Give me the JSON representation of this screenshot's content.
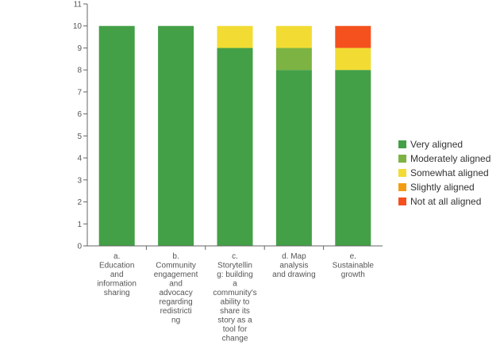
{
  "chart_data": {
    "type": "bar",
    "stacked": true,
    "title": "",
    "xlabel": "",
    "ylabel": "",
    "ylim": [
      0,
      11
    ],
    "yticks": [
      0,
      1,
      2,
      3,
      4,
      5,
      6,
      7,
      8,
      9,
      10,
      11
    ],
    "categories": [
      "a. Education and information sharing",
      "b. Community engagement and advocacy regarding redistricting",
      "c. Storytelling: building a community's ability to share its story as a tool for change",
      "d. Map analysis and drawing",
      "e. Sustainable growth"
    ],
    "category_label_lines": [
      [
        "a.",
        "Education",
        "and",
        "information",
        "sharing"
      ],
      [
        "b.",
        "Community",
        "engagement",
        "and",
        "advocacy",
        "regarding",
        "redistricti",
        "ng"
      ],
      [
        "c.",
        "Storytellin",
        "g: building",
        "a",
        "community's",
        "ability to",
        "share its",
        "story as a",
        "tool for",
        "change"
      ],
      [
        "d. Map",
        "analysis",
        "and drawing"
      ],
      [
        "e.",
        "Sustainable",
        "growth"
      ]
    ],
    "series": [
      {
        "name": "Very aligned",
        "color": "#43a047",
        "values": [
          10,
          10,
          9,
          8,
          8
        ]
      },
      {
        "name": "Moderately aligned",
        "color": "#7cb342",
        "values": [
          0,
          0,
          0,
          1,
          0
        ]
      },
      {
        "name": "Somewhat aligned",
        "color": "#f2dc33",
        "values": [
          0,
          0,
          1,
          1,
          1
        ]
      },
      {
        "name": "Slightly aligned",
        "color": "#f39c12",
        "values": [
          0,
          0,
          0,
          0,
          0
        ]
      },
      {
        "name": "Not at all aligned",
        "color": "#f4511e",
        "values": [
          0,
          0,
          0,
          0,
          1
        ]
      }
    ],
    "legend_position": "right",
    "grid": false
  }
}
